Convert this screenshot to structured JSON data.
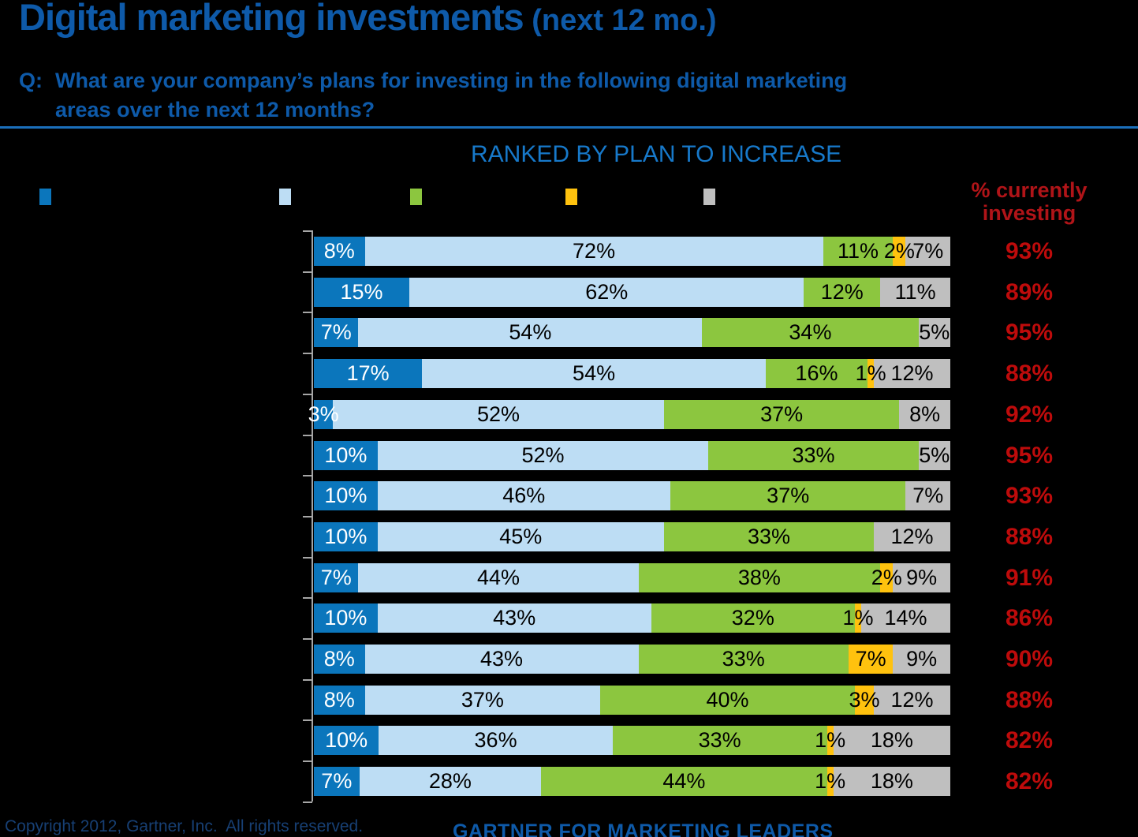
{
  "header": {
    "title": "Digital marketing investments",
    "title_suffix": " (next 12 mo.)",
    "question_label": "Q:",
    "question_line1": "What are your company’s plans for investing in the following digital marketing",
    "question_line2": "areas over the next 12 months?",
    "ranked_label": "RANKED BY PLAN TO INCREASE",
    "right_column_label_line1": "% currently",
    "right_column_label_line2": "investing"
  },
  "legend": {
    "markers": [
      {
        "name": "legend-marker-dark-blue",
        "color": "#0B76BC"
      },
      {
        "name": "legend-marker-light-blue",
        "color": "#BDDDF4"
      },
      {
        "name": "legend-marker-green",
        "color": "#8CC63F"
      },
      {
        "name": "legend-marker-yellow",
        "color": "#FFC20E"
      },
      {
        "name": "legend-marker-gray",
        "color": "#BFBFBF"
      }
    ],
    "labels_visible": false
  },
  "chart_data": {
    "type": "bar",
    "orientation": "horizontal",
    "stacked": true,
    "units": "percent",
    "title": "RANKED BY PLAN TO INCREASE",
    "right_column_header": "% currently investing",
    "series_colors": [
      "#0B76BC",
      "#BDDDF4",
      "#8CC63F",
      "#FFC20E",
      "#BFBFBF"
    ],
    "series_color_names": [
      "dark-blue",
      "light-blue",
      "green",
      "yellow",
      "gray"
    ],
    "rows": [
      {
        "values": [
          8,
          72,
          11,
          2,
          7
        ],
        "currently_investing": "93%"
      },
      {
        "values": [
          15,
          62,
          12,
          0,
          11
        ],
        "currently_investing": "89%"
      },
      {
        "values": [
          7,
          54,
          34,
          0,
          5
        ],
        "currently_investing": "95%"
      },
      {
        "values": [
          17,
          54,
          16,
          1,
          12
        ],
        "currently_investing": "88%"
      },
      {
        "values": [
          3,
          52,
          37,
          0,
          8
        ],
        "currently_investing": "92%"
      },
      {
        "values": [
          10,
          52,
          33,
          0,
          5
        ],
        "currently_investing": "95%"
      },
      {
        "values": [
          10,
          46,
          37,
          0,
          7
        ],
        "currently_investing": "93%"
      },
      {
        "values": [
          10,
          45,
          33,
          0,
          12
        ],
        "currently_investing": "88%"
      },
      {
        "values": [
          7,
          44,
          38,
          2,
          9
        ],
        "currently_investing": "91%"
      },
      {
        "values": [
          10,
          43,
          32,
          1,
          14
        ],
        "currently_investing": "86%"
      },
      {
        "values": [
          8,
          43,
          33,
          7,
          9
        ],
        "currently_investing": "90%"
      },
      {
        "values": [
          8,
          37,
          40,
          3,
          12
        ],
        "currently_investing": "88%"
      },
      {
        "values": [
          10,
          36,
          33,
          1,
          18
        ],
        "currently_investing": "82%"
      },
      {
        "values": [
          7,
          28,
          44,
          1,
          18
        ],
        "currently_investing": "82%"
      }
    ]
  },
  "footer": {
    "copyright": "Copyright 2012, Gartner, Inc.  All rights reserved.",
    "brand": "GARTNER FOR MARKETING LEADERS"
  },
  "colors": {
    "background": "#000000",
    "title_blue": "#0E5AA9",
    "ranked_blue": "#1779CA",
    "rule_blue": "#1B6FBB",
    "red_header": "#B01418",
    "red_values": "#BE0B0B",
    "axis_gray": "#A6A6A6"
  }
}
